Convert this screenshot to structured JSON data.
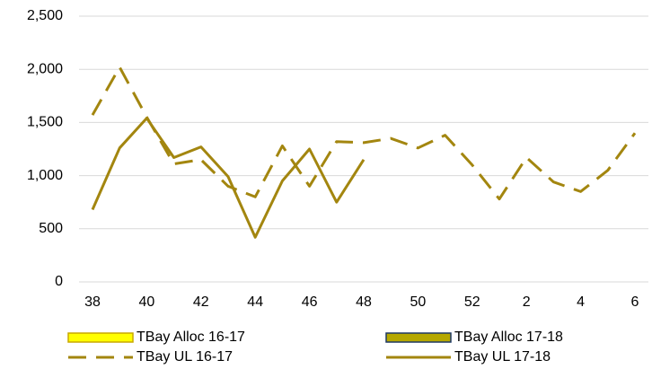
{
  "chart_data": {
    "type": "line",
    "categories": [
      "38",
      null,
      "40",
      null,
      "42",
      null,
      "44",
      null,
      "46",
      null,
      "48",
      null,
      "50",
      null,
      "52",
      null,
      "2",
      null,
      "4",
      null,
      "6"
    ],
    "series": [
      {
        "name": "TBay Alloc 16-17",
        "color": "#ffff00",
        "border": "#c9a800",
        "style": "bar",
        "values": [
          null,
          null,
          null,
          null,
          null,
          null,
          null,
          null,
          null,
          null,
          null,
          null,
          null,
          null,
          null,
          null,
          null,
          null,
          null,
          null,
          null
        ]
      },
      {
        "name": "TBay Alloc 17-18",
        "color": "#b5a800",
        "border": "#1f3864",
        "style": "bar",
        "values": [
          null,
          null,
          null,
          null,
          null,
          null,
          null,
          null,
          null,
          null,
          null,
          null,
          null,
          null,
          null,
          null,
          null,
          null,
          null,
          null,
          null
        ]
      },
      {
        "name": "TBay UL 16-17",
        "color": "#a3860f",
        "style": "dashed",
        "values": [
          1570,
          2020,
          1550,
          1110,
          1150,
          900,
          800,
          1280,
          900,
          1320,
          1310,
          1350,
          1260,
          1380,
          1100,
          780,
          1170,
          940,
          850,
          1050,
          1400
        ]
      },
      {
        "name": "TBay UL 17-18",
        "color": "#a3860f",
        "style": "solid",
        "values": [
          680,
          1260,
          1540,
          1170,
          1270,
          990,
          420,
          950,
          1250,
          750,
          1150,
          null,
          null,
          null,
          null,
          null,
          null,
          null,
          null,
          null,
          null
        ]
      }
    ],
    "ylim": [
      0,
      2500
    ],
    "yticks": [
      0,
      500,
      {
        "value": 1000,
        "label": "1,000"
      },
      {
        "value": 1500,
        "label": "1,500"
      },
      {
        "value": 2000,
        "label": "2,000"
      },
      {
        "value": 2500,
        "label": "2,500"
      }
    ],
    "grid": true
  }
}
